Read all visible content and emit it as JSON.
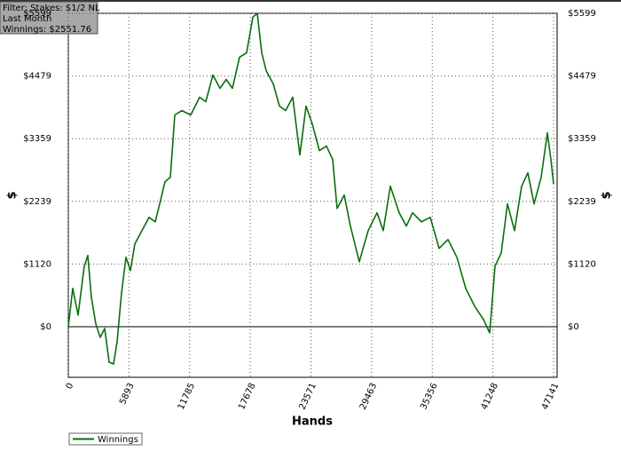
{
  "chart_data": {
    "type": "line",
    "filter_lines": [
      "Filter: Stakes: $1/2 NL",
      "Last Month",
      "Winnings: $2551.76"
    ],
    "xlabel": "Hands",
    "ylabel": "$",
    "y2label": "$",
    "xlim": [
      0,
      47141
    ],
    "xticks": [
      0,
      5893,
      11785,
      17678,
      23571,
      29463,
      35356,
      41248,
      47141
    ],
    "ylim": [
      -905,
      5599
    ],
    "yticks": [
      {
        "value": 0,
        "label": "$0"
      },
      {
        "value": 1120,
        "label": "$1120"
      },
      {
        "value": 2239,
        "label": "$2239"
      },
      {
        "value": 3359,
        "label": "$3359"
      },
      {
        "value": 4479,
        "label": "$4479"
      },
      {
        "value": 5599,
        "label": "$5599"
      }
    ],
    "grid": true,
    "legend": "bottom-left",
    "series": [
      {
        "name": "Winnings",
        "color": "#0a6e0a",
        "x": [
          0,
          431,
          948,
          1551,
          1896,
          2241,
          2672,
          3102,
          3533,
          3964,
          4395,
          4740,
          5171,
          5602,
          6033,
          6464,
          7153,
          7843,
          8446,
          8877,
          9394,
          9911,
          10342,
          11032,
          11893,
          12755,
          13359,
          14048,
          14738,
          15341,
          15944,
          16634,
          17323,
          17927,
          18358,
          18789,
          19220,
          19909,
          20513,
          21116,
          21806,
          22495,
          23098,
          23701,
          24391,
          25080,
          25684,
          26115,
          26804,
          27408,
          28270,
          29131,
          29993,
          30596,
          31286,
          32147,
          32837,
          33440,
          34302,
          35164,
          36025,
          36887,
          37749,
          38611,
          39472,
          40334,
          40937,
          41454,
          42058,
          42661,
          43351,
          44040,
          44644,
          45247,
          45936,
          46540,
          46885,
          47141
        ],
        "values": [
          0,
          683,
          207,
          1080,
          1271,
          524,
          48,
          -191,
          -32,
          -636,
          -667,
          -270,
          604,
          1239,
          1001,
          1478,
          1716,
          1954,
          1875,
          2193,
          2590,
          2669,
          3782,
          3861,
          3782,
          4099,
          4020,
          4497,
          4258,
          4417,
          4258,
          4815,
          4894,
          5530,
          5599,
          4894,
          4576,
          4338,
          3941,
          3862,
          4100,
          3067,
          3941,
          3623,
          3146,
          3226,
          2987,
          2113,
          2351,
          1796,
          1160,
          1716,
          2034,
          1716,
          2511,
          2034,
          1796,
          2034,
          1875,
          1954,
          1398,
          1557,
          1239,
          683,
          365,
          127,
          -111,
          1080,
          1319,
          2193,
          1716,
          2511,
          2749,
          2193,
          2669,
          3464,
          2987,
          2552
        ]
      }
    ]
  }
}
